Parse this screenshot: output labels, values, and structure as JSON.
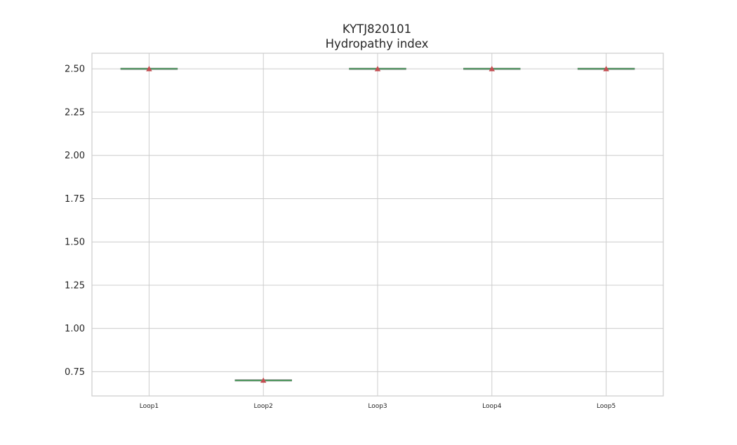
{
  "chart_data": {
    "type": "box",
    "title": [
      "KYTJ820101",
      "Hydropathy index"
    ],
    "xlabel": "",
    "ylabel": "",
    "categories": [
      "Loop1",
      "Loop2",
      "Loop3",
      "Loop4",
      "Loop5"
    ],
    "values": [
      2.5,
      0.7,
      2.5,
      2.5,
      2.5
    ],
    "means": [
      2.5,
      0.7,
      2.5,
      2.5,
      2.5
    ],
    "ylim": [
      0.61,
      2.59
    ],
    "yticks": [
      0.75,
      1.0,
      1.25,
      1.5,
      1.75,
      2.0,
      2.25,
      2.5
    ],
    "ytick_labels": [
      "0.75",
      "1.00",
      "1.25",
      "1.50",
      "1.75",
      "2.00",
      "2.25",
      "2.50"
    ],
    "grid": true,
    "legend": "none",
    "colors": {
      "median": "#55a868",
      "box": "#4c4c4c",
      "mean_marker": "#c44e52",
      "grid": "#cccccc",
      "axes_edge": "#cccccc"
    }
  }
}
